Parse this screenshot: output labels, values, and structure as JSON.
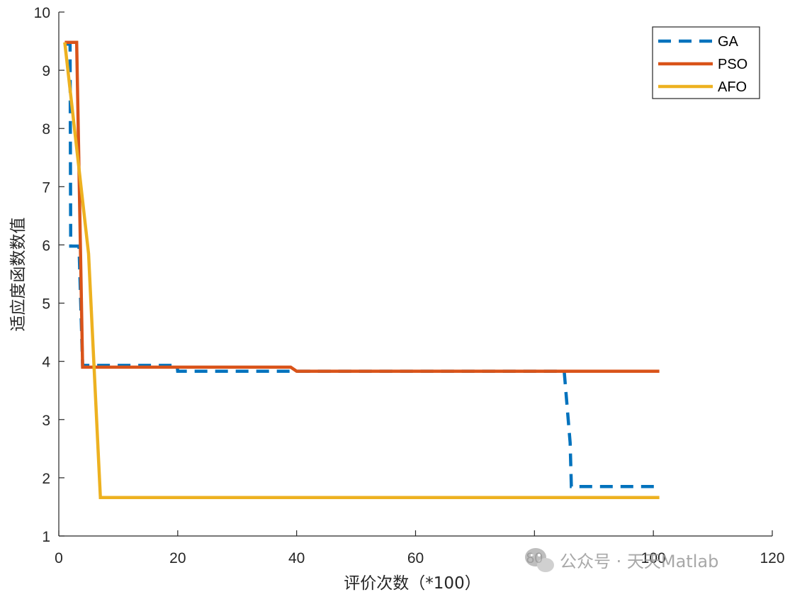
{
  "chart_data": {
    "type": "line",
    "title": "",
    "xlabel": "评价次数（*100）",
    "ylabel": "适应度函数数值",
    "xlim": [
      0,
      120
    ],
    "ylim": [
      1,
      10
    ],
    "xticks": [
      "0",
      "20",
      "40",
      "60",
      "80",
      "100",
      "120"
    ],
    "yticks": [
      "1",
      "2",
      "3",
      "4",
      "5",
      "6",
      "7",
      "8",
      "9",
      "10"
    ],
    "grid": false,
    "legend_position": "top-right",
    "series": [
      {
        "name": "GA",
        "color": "#0072BD",
        "style": "dashed",
        "x": [
          1,
          1.9,
          2,
          3.4,
          4,
          12,
          19.9,
          20,
          85,
          86,
          86.2,
          101
        ],
        "y": [
          9.45,
          9.45,
          5.98,
          5.98,
          3.93,
          3.93,
          3.93,
          3.83,
          3.83,
          2.6,
          1.85,
          1.85
        ]
      },
      {
        "name": "PSO",
        "color": "#D95319",
        "style": "solid",
        "x": [
          1,
          3,
          4,
          39,
          40,
          101
        ],
        "y": [
          9.48,
          9.48,
          3.9,
          3.9,
          3.83,
          3.83
        ]
      },
      {
        "name": "AFO",
        "color": "#EDB120",
        "style": "solid",
        "x": [
          1,
          5,
          7,
          101
        ],
        "y": [
          9.48,
          5.85,
          1.66,
          1.66
        ]
      }
    ]
  },
  "watermark": {
    "text": "公众号 · 天天Matlab",
    "icon": "wechat-logo-icon"
  }
}
